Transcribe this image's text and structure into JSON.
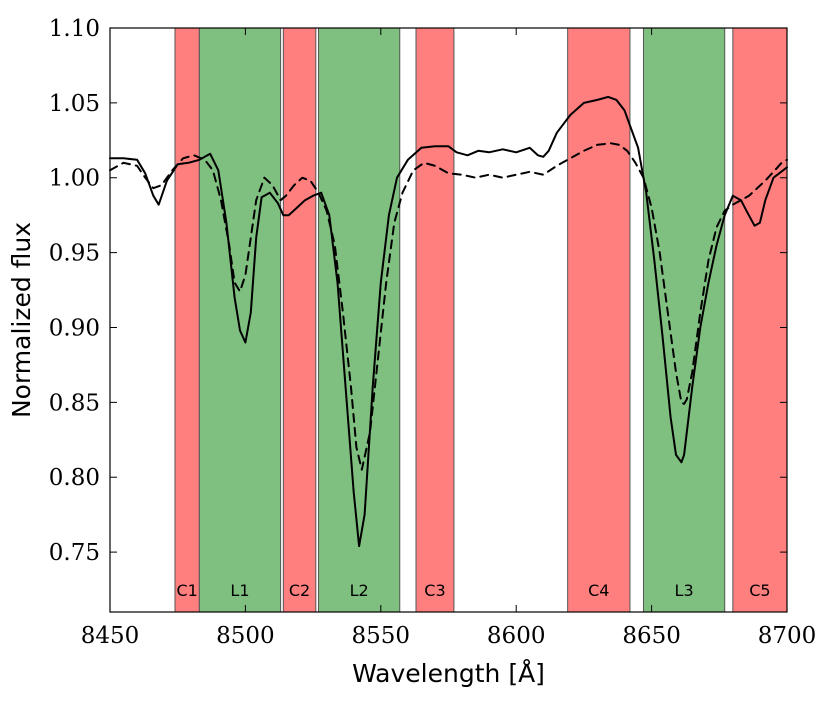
{
  "chart_data": {
    "type": "line",
    "title": "",
    "xlabel": "Wavelength [Å]",
    "ylabel": "Normalized flux",
    "xlim": [
      8450,
      8700
    ],
    "ylim": [
      0.71,
      1.1
    ],
    "xticks": [
      8450,
      8500,
      8550,
      8600,
      8650,
      8700
    ],
    "xtick_labels": [
      "8450",
      "8500",
      "8550",
      "8600",
      "8650",
      "8700"
    ],
    "yticks": [
      0.75,
      0.8,
      0.85,
      0.9,
      0.95,
      1.0,
      1.05,
      1.1
    ],
    "ytick_labels": [
      "0.75",
      "0.80",
      "0.85",
      "0.90",
      "0.95",
      "1.00",
      "1.05",
      "1.10"
    ],
    "grid": false,
    "bands": [
      {
        "label": "C1",
        "kind": "continuum",
        "x0": 8474,
        "x1": 8483
      },
      {
        "label": "L1",
        "kind": "line",
        "x0": 8483,
        "x1": 8513
      },
      {
        "label": "C2",
        "kind": "continuum",
        "x0": 8514,
        "x1": 8526
      },
      {
        "label": "L2",
        "kind": "line",
        "x0": 8527,
        "x1": 8557
      },
      {
        "label": "C3",
        "kind": "continuum",
        "x0": 8563,
        "x1": 8577
      },
      {
        "label": "C4",
        "kind": "continuum",
        "x0": 8619,
        "x1": 8642
      },
      {
        "label": "L3",
        "kind": "line",
        "x0": 8647,
        "x1": 8677
      },
      {
        "label": "C5",
        "kind": "continuum",
        "x0": 8680,
        "x1": 8700
      }
    ],
    "colors": {
      "continuum": "#ff7f7f",
      "line": "#7fbf7f",
      "edge": "#555555"
    },
    "series": [
      {
        "style": "solid",
        "x": [
          8450,
          8455,
          8460,
          8463,
          8466,
          8468,
          8471,
          8475,
          8479,
          8483,
          8487,
          8490,
          8493,
          8496,
          8498,
          8500,
          8502,
          8504,
          8506,
          8509,
          8512,
          8514,
          8516,
          8519,
          8522,
          8525,
          8528,
          8531,
          8534,
          8537,
          8540,
          8542,
          8544,
          8547,
          8550,
          8553,
          8556,
          8560,
          8565,
          8570,
          8575,
          8578,
          8582,
          8586,
          8590,
          8595,
          8600,
          8605,
          8608,
          8610,
          8612,
          8615,
          8620,
          8625,
          8630,
          8634,
          8637,
          8640,
          8642,
          8645,
          8648,
          8651,
          8654,
          8657,
          8659,
          8661,
          8662,
          8663,
          8665,
          8668,
          8671,
          8674,
          8677,
          8680,
          8683,
          8685,
          8688,
          8690,
          8692,
          8695,
          8700
        ],
        "y": [
          1.013,
          1.013,
          1.012,
          1.003,
          0.988,
          0.982,
          0.998,
          1.009,
          1.01,
          1.012,
          1.016,
          1.005,
          0.97,
          0.92,
          0.898,
          0.89,
          0.91,
          0.96,
          0.987,
          0.99,
          0.983,
          0.975,
          0.975,
          0.98,
          0.985,
          0.988,
          0.99,
          0.975,
          0.93,
          0.86,
          0.79,
          0.754,
          0.775,
          0.86,
          0.93,
          0.975,
          1.0,
          1.012,
          1.02,
          1.021,
          1.021,
          1.017,
          1.015,
          1.018,
          1.017,
          1.019,
          1.017,
          1.02,
          1.015,
          1.014,
          1.018,
          1.03,
          1.042,
          1.05,
          1.052,
          1.054,
          1.052,
          1.045,
          1.035,
          1.02,
          0.99,
          0.945,
          0.895,
          0.84,
          0.815,
          0.81,
          0.815,
          0.83,
          0.86,
          0.9,
          0.93,
          0.955,
          0.975,
          0.988,
          0.985,
          0.978,
          0.968,
          0.97,
          0.985,
          1.0,
          1.007
        ]
      },
      {
        "style": "dashed",
        "x": [
          8450,
          8455,
          8460,
          8463,
          8466,
          8469,
          8473,
          8477,
          8481,
          8485,
          8488,
          8491,
          8494,
          8496,
          8498,
          8500,
          8502,
          8504,
          8507,
          8510,
          8513,
          8515,
          8518,
          8521,
          8524,
          8527,
          8530,
          8533,
          8536,
          8539,
          8541,
          8543,
          8546,
          8549,
          8552,
          8555,
          8558,
          8562,
          8566,
          8570,
          8575,
          8580,
          8585,
          8590,
          8595,
          8600,
          8605,
          8610,
          8615,
          8620,
          8625,
          8630,
          8635,
          8638,
          8641,
          8644,
          8647,
          8650,
          8653,
          8656,
          8659,
          8661,
          8662,
          8663,
          8665,
          8668,
          8671,
          8674,
          8677,
          8680,
          8683,
          8686,
          8689,
          8692,
          8695,
          8698,
          8700
        ],
        "y": [
          1.005,
          1.01,
          1.008,
          1.0,
          0.993,
          0.995,
          1.005,
          1.013,
          1.015,
          1.012,
          1.005,
          0.985,
          0.955,
          0.93,
          0.924,
          0.935,
          0.96,
          0.985,
          1.0,
          0.995,
          0.985,
          0.988,
          0.995,
          1.0,
          0.998,
          0.99,
          0.978,
          0.955,
          0.91,
          0.86,
          0.82,
          0.805,
          0.83,
          0.88,
          0.93,
          0.97,
          0.99,
          1.005,
          1.01,
          1.008,
          1.003,
          1.002,
          1.0,
          1.002,
          1.0,
          1.002,
          1.004,
          1.002,
          1.008,
          1.013,
          1.018,
          1.022,
          1.023,
          1.022,
          1.018,
          1.01,
          1.0,
          0.98,
          0.95,
          0.91,
          0.87,
          0.85,
          0.849,
          0.852,
          0.87,
          0.91,
          0.945,
          0.967,
          0.978,
          0.982,
          0.985,
          0.988,
          0.993,
          0.998,
          1.004,
          1.01,
          1.012
        ]
      }
    ]
  }
}
